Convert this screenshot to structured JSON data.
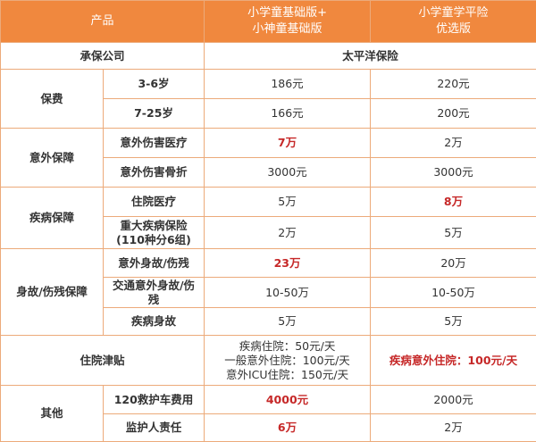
{
  "header": {
    "col_product": "产品",
    "col_plan_a_line1": "小学童基础版+",
    "col_plan_a_line2": "小神童基础版",
    "col_plan_b_line1": "小学童学平险",
    "col_plan_b_line2": "优选版"
  },
  "insurer": {
    "label": "承保公司",
    "value": "太平洋保险"
  },
  "premium": {
    "group": "保费",
    "rows": [
      {
        "item": "3-6岁",
        "a": "186元",
        "b": "220元"
      },
      {
        "item": "7-25岁",
        "a": "166元",
        "b": "200元"
      }
    ]
  },
  "accident": {
    "group": "意外保障",
    "rows": [
      {
        "item": "意外伤害医疗",
        "a": "7万",
        "b": "2万"
      },
      {
        "item": "意外伤害骨折",
        "a": "3000元",
        "b": "3000元"
      }
    ]
  },
  "illness": {
    "group": "疾病保障",
    "rows": [
      {
        "item": "住院医疗",
        "a": "5万",
        "b": "8万"
      },
      {
        "item_line1": "重大疾病保险",
        "item_line2": "(110种分6组)",
        "a": "2万",
        "b": "5万"
      }
    ]
  },
  "death": {
    "group": "身故/伤残保障",
    "rows": [
      {
        "item": "意外身故/伤残",
        "a": "23万",
        "b": "20万"
      },
      {
        "item_line1": "交通意外身故/伤",
        "item_line2": "残",
        "a": "10-50万",
        "b": "10-50万"
      },
      {
        "item": "疾病身故",
        "a": "5万",
        "b": "5万"
      }
    ]
  },
  "hospital_allowance": {
    "label": "住院津贴",
    "a_lines": [
      "疾病住院：50元/天",
      "一般意外住院：100元/天",
      "意外ICU住院：150元/天"
    ],
    "b": "疾病意外住院：100元/天"
  },
  "other": {
    "group": "其他",
    "rows": [
      {
        "item": "120救护车费用",
        "a": "4000元",
        "b": "2000元"
      },
      {
        "item": "监护人责任",
        "a": "6万",
        "b": "2万"
      }
    ]
  },
  "colors": {
    "header_bg": "#f0883e",
    "border": "#ecaa7a",
    "highlight": "#c62828"
  }
}
